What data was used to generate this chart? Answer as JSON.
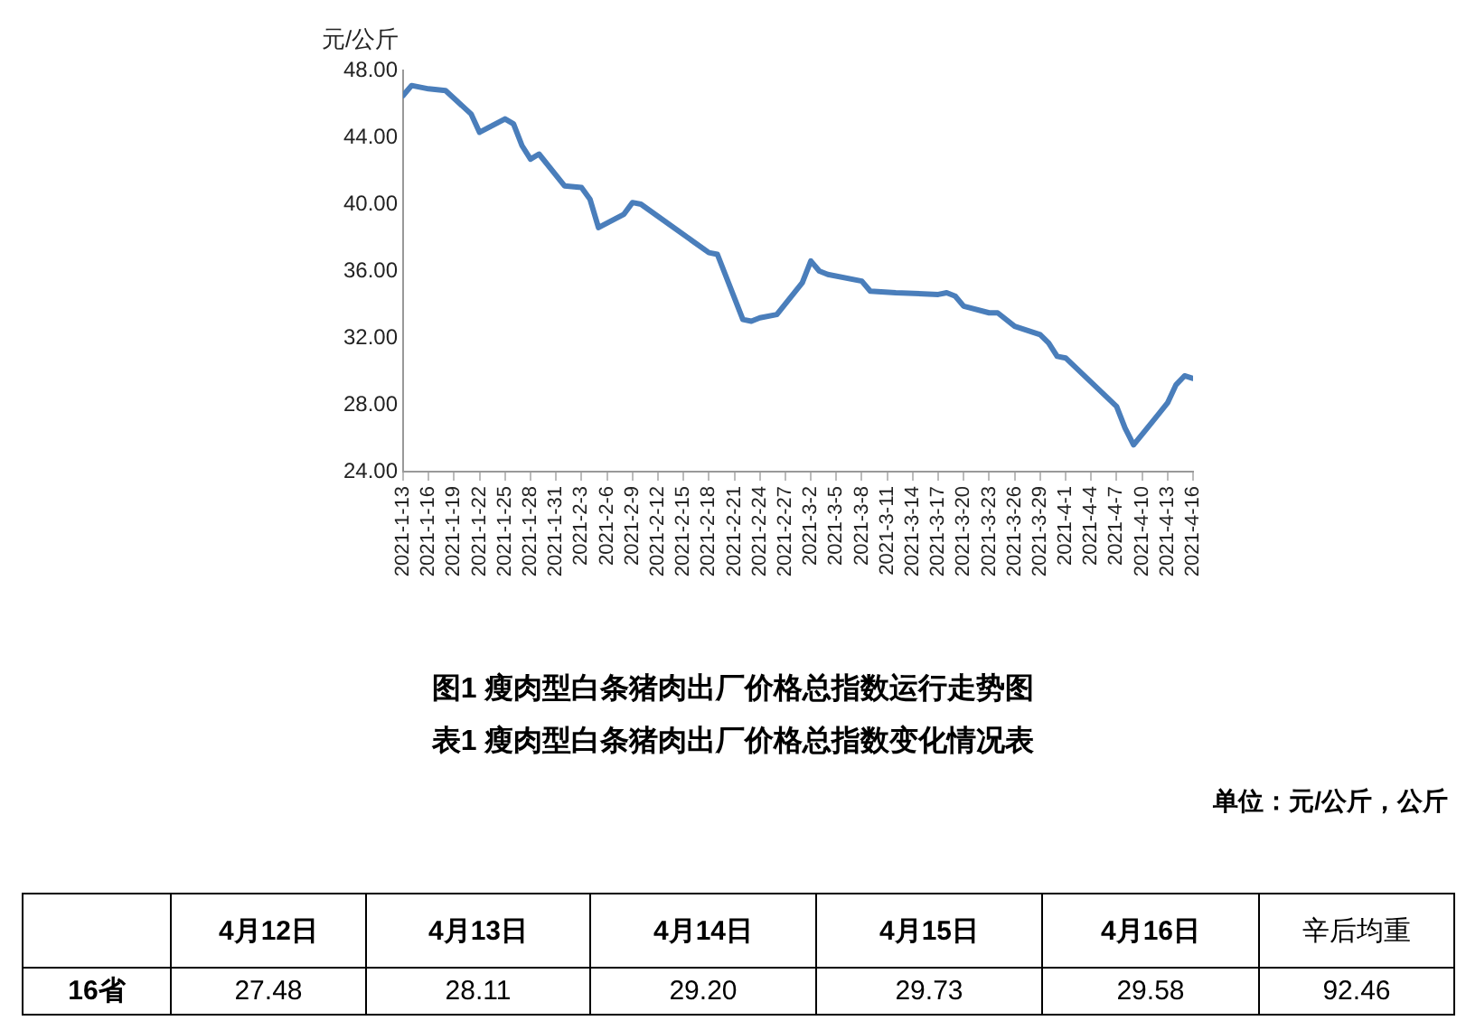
{
  "chart_data": {
    "type": "line",
    "title": "图1 瘦肉型白条猪肉出厂价格总指数运行走势图",
    "ylabel": "元/公斤",
    "x": [
      "2021-01-13",
      "2021-01-14",
      "2021-01-16",
      "2021-01-18",
      "2021-01-21",
      "2021-01-22",
      "2021-01-25",
      "2021-01-26",
      "2021-01-27",
      "2021-01-28",
      "2021-01-29",
      "2021-02-01",
      "2021-02-03",
      "2021-02-04",
      "2021-02-05",
      "2021-02-08",
      "2021-02-09",
      "2021-02-10",
      "2021-02-18",
      "2021-02-19",
      "2021-02-22",
      "2021-02-23",
      "2021-02-24",
      "2021-02-26",
      "2021-03-01",
      "2021-03-02",
      "2021-03-03",
      "2021-03-04",
      "2021-03-08",
      "2021-03-09",
      "2021-03-12",
      "2021-03-17",
      "2021-03-18",
      "2021-03-19",
      "2021-03-20",
      "2021-03-23",
      "2021-03-24",
      "2021-03-26",
      "2021-03-29",
      "2021-03-30",
      "2021-03-31",
      "2021-04-01",
      "2021-04-07",
      "2021-04-08",
      "2021-04-09",
      "2021-04-12",
      "2021-04-13",
      "2021-04-14",
      "2021-04-15",
      "2021-04-16"
    ],
    "series": [
      {
        "color": "#4a7ebb",
        "values": [
          46.5,
          47.1,
          46.9,
          46.8,
          45.4,
          44.3,
          45.1,
          44.8,
          43.5,
          42.7,
          43.0,
          41.1,
          41.0,
          40.3,
          38.6,
          39.4,
          40.1,
          40.0,
          37.1,
          37.0,
          33.1,
          33.0,
          33.2,
          33.4,
          35.3,
          36.6,
          36.0,
          35.8,
          35.4,
          34.8,
          34.7,
          34.6,
          34.7,
          34.5,
          33.9,
          33.5,
          33.5,
          32.7,
          32.2,
          31.7,
          30.9,
          30.8,
          27.9,
          26.6,
          25.6,
          27.48,
          28.11,
          29.2,
          29.73,
          29.58
        ]
      }
    ],
    "ylim": [
      24,
      48
    ],
    "yticks": [
      {
        "value": 24,
        "label": "24.00"
      },
      {
        "value": 28,
        "label": "28.00"
      },
      {
        "value": 32,
        "label": "32.00"
      },
      {
        "value": 36,
        "label": "36.00"
      },
      {
        "value": 40,
        "label": "40.00"
      },
      {
        "value": 44,
        "label": "44.00"
      },
      {
        "value": 48,
        "label": "48.00"
      }
    ],
    "xlim": [
      "2021-01-13",
      "2021-04-16"
    ],
    "xticks": [
      {
        "value": "2021-01-13",
        "label": "2021-1-13"
      },
      {
        "value": "2021-01-16",
        "label": "2021-1-16"
      },
      {
        "value": "2021-01-19",
        "label": "2021-1-19"
      },
      {
        "value": "2021-01-22",
        "label": "2021-1-22"
      },
      {
        "value": "2021-01-25",
        "label": "2021-1-25"
      },
      {
        "value": "2021-01-28",
        "label": "2021-1-28"
      },
      {
        "value": "2021-01-31",
        "label": "2021-1-31"
      },
      {
        "value": "2021-02-03",
        "label": "2021-2-3"
      },
      {
        "value": "2021-02-06",
        "label": "2021-2-6"
      },
      {
        "value": "2021-02-09",
        "label": "2021-2-9"
      },
      {
        "value": "2021-02-12",
        "label": "2021-2-12"
      },
      {
        "value": "2021-02-15",
        "label": "2021-2-15"
      },
      {
        "value": "2021-02-18",
        "label": "2021-2-18"
      },
      {
        "value": "2021-02-21",
        "label": "2021-2-21"
      },
      {
        "value": "2021-02-24",
        "label": "2021-2-24"
      },
      {
        "value": "2021-02-27",
        "label": "2021-2-27"
      },
      {
        "value": "2021-03-02",
        "label": "2021-3-2"
      },
      {
        "value": "2021-03-05",
        "label": "2021-3-5"
      },
      {
        "value": "2021-03-08",
        "label": "2021-3-8"
      },
      {
        "value": "2021-03-11",
        "label": "2021-3-11"
      },
      {
        "value": "2021-03-14",
        "label": "2021-3-14"
      },
      {
        "value": "2021-03-17",
        "label": "2021-3-17"
      },
      {
        "value": "2021-03-20",
        "label": "2021-3-20"
      },
      {
        "value": "2021-03-23",
        "label": "2021-3-23"
      },
      {
        "value": "2021-03-26",
        "label": "2021-3-26"
      },
      {
        "value": "2021-03-29",
        "label": "2021-3-29"
      },
      {
        "value": "2021-04-01",
        "label": "2021-4-1"
      },
      {
        "value": "2021-04-04",
        "label": "2021-4-4"
      },
      {
        "value": "2021-04-07",
        "label": "2021-4-7"
      },
      {
        "value": "2021-04-10",
        "label": "2021-4-10"
      },
      {
        "value": "2021-04-13",
        "label": "2021-4-13"
      },
      {
        "value": "2021-04-16",
        "label": "2021-4-16"
      }
    ],
    "grid": false,
    "legend": false,
    "marker": "none",
    "line_style": "solid",
    "annotations": [
      "表1 瘦肉型白条猪肉出厂价格总指数变化情况表",
      "单位：元/公斤，公斤",
      "4月12日",
      "4月13日",
      "4月14日",
      "4月15日",
      "4月16日",
      "辛后均重",
      "16省",
      "27.48",
      "28.11",
      "29.20",
      "29.73",
      "29.58",
      "92.46"
    ]
  }
}
